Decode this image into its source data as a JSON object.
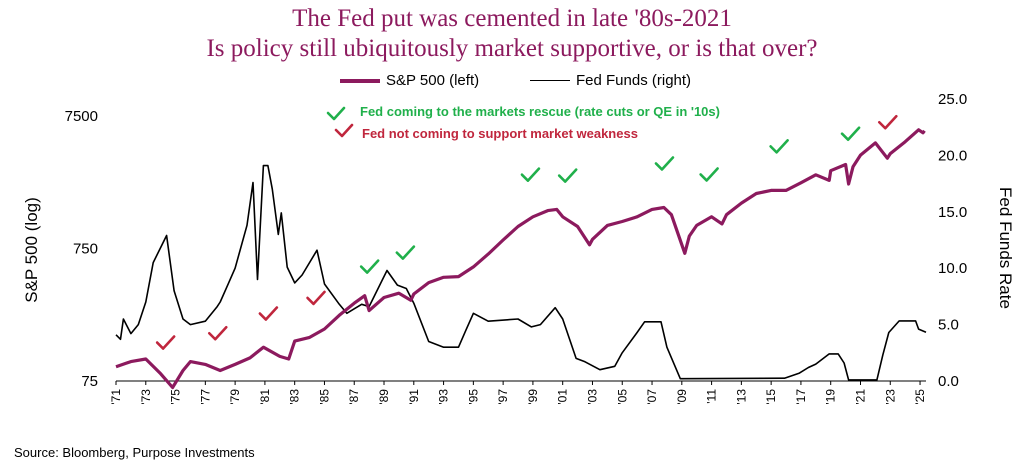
{
  "chart_data": {
    "type": "line",
    "title": "The Fed put was cemented in late '80s-2021",
    "subtitle": "Is policy still ubiquitously market supportive, or is that over?",
    "source": "Source: Bloomberg, Purpose Investments",
    "y_left_label": "S&P 500 (log)",
    "y_right_label": "Fed Funds Rate",
    "y_left_ticks": [
      "7500",
      "750",
      "75"
    ],
    "y_left_tick_values": [
      7500,
      750,
      75
    ],
    "y_left_range": [
      75,
      7500
    ],
    "y_right_ticks": [
      "25.0",
      "20.0",
      "15.0",
      "10.0",
      "5.0",
      "0.0"
    ],
    "y_right_tick_values": [
      25,
      20,
      15,
      10,
      5,
      0
    ],
    "y_right_range": [
      0,
      25
    ],
    "x_range": [
      1971,
      2025.4
    ],
    "x_ticks": [
      "'71",
      "'73",
      "'75",
      "'77",
      "'79",
      "'81",
      "'83",
      "'85",
      "'87",
      "'89",
      "'91",
      "'93",
      "'95",
      "'97",
      "'99",
      "'01",
      "'03",
      "'05",
      "'07",
      "'09",
      "'11",
      "'13",
      "'15",
      "'17",
      "'19",
      "'21",
      "'23",
      "'25"
    ],
    "x_tick_years": [
      1971,
      1973,
      1975,
      1977,
      1979,
      1981,
      1983,
      1985,
      1987,
      1989,
      1991,
      1993,
      1995,
      1997,
      1999,
      2001,
      2003,
      2005,
      2007,
      2009,
      2011,
      2013,
      2015,
      2017,
      2019,
      2021,
      2023,
      2025
    ],
    "series": [
      {
        "name": "S&P 500 (left)",
        "axis": "left",
        "color": "#8c1a5e",
        "points": [
          [
            1971,
            96
          ],
          [
            1972,
            105
          ],
          [
            1973,
            110
          ],
          [
            1974,
            85
          ],
          [
            1974.8,
            67
          ],
          [
            1975.5,
            90
          ],
          [
            1976,
            105
          ],
          [
            1977,
            100
          ],
          [
            1978,
            90
          ],
          [
            1979,
            100
          ],
          [
            1980,
            112
          ],
          [
            1980.9,
            135
          ],
          [
            1982,
            115
          ],
          [
            1982.6,
            110
          ],
          [
            1983,
            150
          ],
          [
            1984,
            160
          ],
          [
            1985,
            185
          ],
          [
            1986,
            235
          ],
          [
            1987,
            290
          ],
          [
            1987.7,
            330
          ],
          [
            1988,
            255
          ],
          [
            1989,
            320
          ],
          [
            1990,
            345
          ],
          [
            1990.8,
            305
          ],
          [
            1991,
            340
          ],
          [
            1992,
            415
          ],
          [
            1993,
            455
          ],
          [
            1994,
            460
          ],
          [
            1995,
            545
          ],
          [
            1996,
            680
          ],
          [
            1997,
            870
          ],
          [
            1998,
            1100
          ],
          [
            1999,
            1300
          ],
          [
            2000,
            1450
          ],
          [
            2000.6,
            1480
          ],
          [
            2001,
            1300
          ],
          [
            2002,
            1100
          ],
          [
            2002.8,
            800
          ],
          [
            2003,
            880
          ],
          [
            2004,
            1120
          ],
          [
            2005,
            1200
          ],
          [
            2006,
            1300
          ],
          [
            2007,
            1480
          ],
          [
            2007.8,
            1530
          ],
          [
            2008.3,
            1350
          ],
          [
            2009.2,
            690
          ],
          [
            2009.5,
            930
          ],
          [
            2010,
            1120
          ],
          [
            2011,
            1300
          ],
          [
            2011.7,
            1150
          ],
          [
            2012,
            1350
          ],
          [
            2013,
            1650
          ],
          [
            2014,
            1950
          ],
          [
            2015,
            2060
          ],
          [
            2016,
            2060
          ],
          [
            2017,
            2350
          ],
          [
            2018,
            2700
          ],
          [
            2018.9,
            2450
          ],
          [
            2019,
            2900
          ],
          [
            2020,
            3230
          ],
          [
            2020.2,
            2300
          ],
          [
            2020.5,
            3100
          ],
          [
            2021,
            3800
          ],
          [
            2022,
            4700
          ],
          [
            2022.8,
            3600
          ],
          [
            2023,
            3900
          ],
          [
            2024,
            4800
          ],
          [
            2024.9,
            5900
          ],
          [
            2025.2,
            5600
          ],
          [
            2025.3,
            5800
          ]
        ]
      },
      {
        "name": "Fed Funds (right)",
        "axis": "right",
        "color": "#000000",
        "points": [
          [
            1971,
            4.1
          ],
          [
            1971.3,
            3.7
          ],
          [
            1971.5,
            5.5
          ],
          [
            1972,
            4.2
          ],
          [
            1972.5,
            5.0
          ],
          [
            1973,
            7.0
          ],
          [
            1973.5,
            10.5
          ],
          [
            1974.4,
            12.9
          ],
          [
            1974.9,
            8.0
          ],
          [
            1975.5,
            5.5
          ],
          [
            1976,
            5.0
          ],
          [
            1977,
            5.3
          ],
          [
            1977.8,
            6.6
          ],
          [
            1978,
            7.0
          ],
          [
            1978.5,
            8.5
          ],
          [
            1979,
            10.0
          ],
          [
            1979.8,
            13.8
          ],
          [
            1980.2,
            17.6
          ],
          [
            1980.5,
            9.0
          ],
          [
            1980.9,
            19.1
          ],
          [
            1981.2,
            19.1
          ],
          [
            1981.5,
            17.0
          ],
          [
            1981.9,
            13.0
          ],
          [
            1982.1,
            14.9
          ],
          [
            1982.5,
            10.1
          ],
          [
            1983,
            8.7
          ],
          [
            1983.5,
            9.4
          ],
          [
            1984.5,
            11.6
          ],
          [
            1985,
            8.6
          ],
          [
            1986,
            6.8
          ],
          [
            1986.5,
            6.0
          ],
          [
            1987,
            6.4
          ],
          [
            1987.5,
            6.8
          ],
          [
            1988,
            6.6
          ],
          [
            1989.2,
            9.8
          ],
          [
            1989.9,
            8.5
          ],
          [
            1990.5,
            8.2
          ],
          [
            1991,
            6.9
          ],
          [
            1992,
            3.5
          ],
          [
            1993,
            3.0
          ],
          [
            1994,
            3.0
          ],
          [
            1994.5,
            4.5
          ],
          [
            1995,
            6.0
          ],
          [
            1996,
            5.3
          ],
          [
            1998,
            5.5
          ],
          [
            1998.9,
            4.8
          ],
          [
            1999.5,
            5.0
          ],
          [
            2000.5,
            6.5
          ],
          [
            2001,
            5.5
          ],
          [
            2001.9,
            2.0
          ],
          [
            2002.5,
            1.7
          ],
          [
            2003.5,
            1.0
          ],
          [
            2004.5,
            1.3
          ],
          [
            2005,
            2.5
          ],
          [
            2006,
            4.3
          ],
          [
            2006.5,
            5.25
          ],
          [
            2007.6,
            5.25
          ],
          [
            2008,
            3.0
          ],
          [
            2008.9,
            0.2
          ],
          [
            2015.9,
            0.25
          ],
          [
            2016.9,
            0.7
          ],
          [
            2017.5,
            1.2
          ],
          [
            2018,
            1.5
          ],
          [
            2018.9,
            2.4
          ],
          [
            2019.5,
            2.4
          ],
          [
            2019.9,
            1.6
          ],
          [
            2020.2,
            0.1
          ],
          [
            2022.1,
            0.1
          ],
          [
            2022.5,
            2.3
          ],
          [
            2022.9,
            4.3
          ],
          [
            2023.6,
            5.33
          ],
          [
            2024.7,
            5.33
          ],
          [
            2024.9,
            4.6
          ],
          [
            2025.4,
            4.33
          ]
        ]
      }
    ],
    "annotations": [
      {
        "label": "Fed coming to the markets rescue (rate cuts or QE in '10s)",
        "marker": "✓",
        "color": "#20b04b"
      },
      {
        "label": "Fed not coming to support market weakness",
        "marker": "✓",
        "color": "#c0263d"
      }
    ],
    "green_check_years": [
      1988,
      1990.4,
      1998.8,
      2001.3,
      2007.8,
      2010.8,
      2015.5,
      2020.3
    ],
    "red_check_years": [
      1974.3,
      1977.8,
      1981.2,
      1984.4,
      2022.8
    ]
  }
}
